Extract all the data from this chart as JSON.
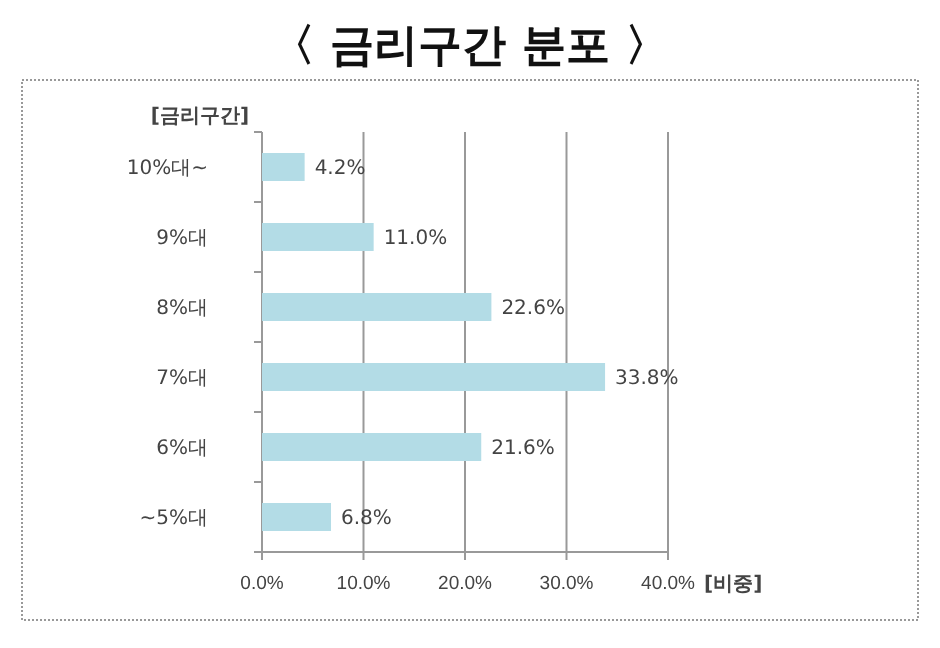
{
  "chart_data": {
    "type": "bar",
    "orientation": "horizontal",
    "title": "〈 금리구간 분포 〉",
    "ylabel": "[금리구간]",
    "xlabel": "[비중]",
    "categories": [
      "10%대~",
      "9%대",
      "8%대",
      "7%대",
      "6%대",
      "~5%대"
    ],
    "values": [
      4.2,
      11.0,
      22.6,
      33.8,
      21.6,
      6.8
    ],
    "color": "#b3dce6",
    "value_labels": [
      "4.2%",
      "11.0%",
      "22.6%",
      "33.8%",
      "21.6%",
      "6.8%"
    ],
    "xlim": [
      0,
      40
    ],
    "xticks": [
      {
        "value": 0,
        "label": "0.0%"
      },
      {
        "value": 10,
        "label": "10.0%"
      },
      {
        "value": 20,
        "label": "20.0%"
      },
      {
        "value": 30,
        "label": "30.0%"
      },
      {
        "value": 40,
        "label": "40.0%"
      }
    ],
    "grid": "x"
  }
}
